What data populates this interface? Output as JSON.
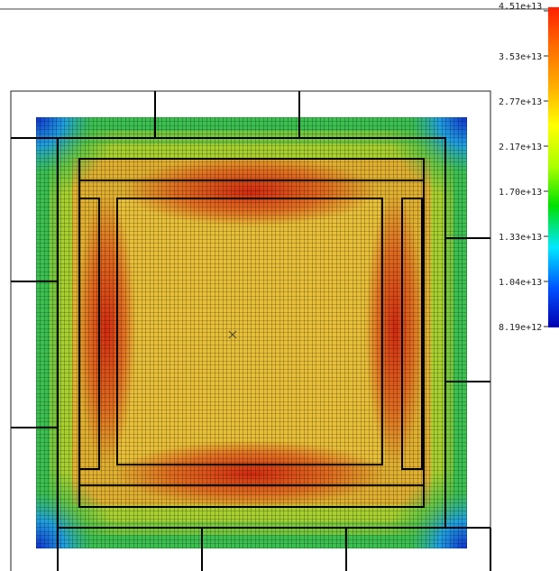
{
  "colorbar": {
    "ticks": [
      "4.51e+13",
      "3.53e+13",
      "2.77e+13",
      "2.17e+13",
      "1.70e+13",
      "1.33e+13",
      "1.04e+13",
      "8.19e+12"
    ],
    "colors": [
      "#ff2000",
      "#ff6a00",
      "#ffb000",
      "#ffff00",
      "#a8ff00",
      "#00e000",
      "#00e8ff",
      "#0050ff",
      "#0000b0"
    ]
  },
  "heatmap": {
    "colors": {
      "center": "#e8c038",
      "hot": "#d22810",
      "warm": "#f0a020",
      "mid": "#a8d030",
      "edge": "#3cc050",
      "corner": "#1030d0"
    }
  }
}
